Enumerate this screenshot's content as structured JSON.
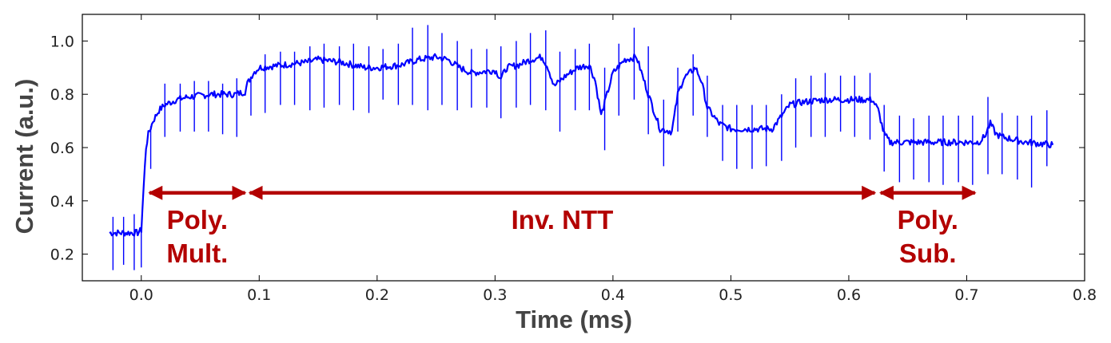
{
  "chart_data": {
    "type": "line",
    "title": "",
    "xlabel": "Time (ms)",
    "ylabel": "Current (a.u.)",
    "xlim": [
      -0.05,
      0.8
    ],
    "ylim": [
      0.1,
      1.1
    ],
    "x_ticks": [
      {
        "value": 0.0,
        "label": "0.0"
      },
      {
        "value": 0.1,
        "label": "0.1"
      },
      {
        "value": 0.2,
        "label": "0.2"
      },
      {
        "value": 0.3,
        "label": "0.3"
      },
      {
        "value": 0.4,
        "label": "0.4"
      },
      {
        "value": 0.5,
        "label": "0.5"
      },
      {
        "value": 0.6,
        "label": "0.6"
      },
      {
        "value": 0.7,
        "label": "0.7"
      },
      {
        "value": 0.8,
        "label": "0.8"
      }
    ],
    "y_ticks": [
      {
        "value": 0.2,
        "label": "0.2"
      },
      {
        "value": 0.4,
        "label": "0.4"
      },
      {
        "value": 0.6,
        "label": "0.6"
      },
      {
        "value": 0.8,
        "label": "0.8"
      },
      {
        "value": 1.0,
        "label": "1.0"
      }
    ],
    "grid": false,
    "series_color": "#0000ff",
    "annotation_color": "#b30000",
    "series": [
      {
        "x": [
          -0.027,
          -0.02,
          -0.01,
          -0.003,
          0.0,
          0.002,
          0.004,
          0.006,
          0.01,
          0.015,
          0.02,
          0.03,
          0.04,
          0.06,
          0.08,
          0.088,
          0.09,
          0.095,
          0.1,
          0.12,
          0.14,
          0.15,
          0.17,
          0.19,
          0.2,
          0.22,
          0.235,
          0.25,
          0.26,
          0.27,
          0.28,
          0.3,
          0.305,
          0.31,
          0.32,
          0.33,
          0.34,
          0.345,
          0.35,
          0.36,
          0.37,
          0.38,
          0.385,
          0.39,
          0.395,
          0.4,
          0.41,
          0.42,
          0.43,
          0.44,
          0.45,
          0.455,
          0.46,
          0.47,
          0.475,
          0.48,
          0.49,
          0.5,
          0.52,
          0.535,
          0.545,
          0.55,
          0.56,
          0.58,
          0.6,
          0.62,
          0.625,
          0.63,
          0.635,
          0.64,
          0.66,
          0.68,
          0.7,
          0.71,
          0.715,
          0.72,
          0.725,
          0.73,
          0.75,
          0.773
        ],
        "y": [
          0.28,
          0.28,
          0.28,
          0.28,
          0.29,
          0.45,
          0.6,
          0.65,
          0.7,
          0.74,
          0.76,
          0.78,
          0.79,
          0.8,
          0.8,
          0.81,
          0.84,
          0.88,
          0.9,
          0.91,
          0.92,
          0.93,
          0.92,
          0.9,
          0.9,
          0.91,
          0.93,
          0.94,
          0.93,
          0.9,
          0.88,
          0.89,
          0.86,
          0.9,
          0.91,
          0.93,
          0.94,
          0.9,
          0.83,
          0.87,
          0.9,
          0.91,
          0.85,
          0.72,
          0.8,
          0.88,
          0.93,
          0.94,
          0.8,
          0.67,
          0.66,
          0.8,
          0.86,
          0.9,
          0.85,
          0.75,
          0.69,
          0.67,
          0.67,
          0.67,
          0.73,
          0.76,
          0.77,
          0.78,
          0.78,
          0.78,
          0.74,
          0.65,
          0.62,
          0.62,
          0.62,
          0.62,
          0.62,
          0.62,
          0.64,
          0.69,
          0.65,
          0.64,
          0.62,
          0.61
        ]
      }
    ],
    "spikes": [
      {
        "x": -0.024,
        "lo": 0.14,
        "hi": 0.34
      },
      {
        "x": -0.015,
        "lo": 0.16,
        "hi": 0.34
      },
      {
        "x": -0.006,
        "lo": 0.14,
        "hi": 0.35
      },
      {
        "x": 0.0,
        "lo": 0.15,
        "hi": 0.3
      },
      {
        "x": 0.008,
        "lo": 0.52,
        "hi": 0.68
      },
      {
        "x": 0.02,
        "lo": 0.64,
        "hi": 0.84
      },
      {
        "x": 0.033,
        "lo": 0.66,
        "hi": 0.84
      },
      {
        "x": 0.045,
        "lo": 0.66,
        "hi": 0.85
      },
      {
        "x": 0.057,
        "lo": 0.66,
        "hi": 0.85
      },
      {
        "x": 0.069,
        "lo": 0.65,
        "hi": 0.84
      },
      {
        "x": 0.081,
        "lo": 0.64,
        "hi": 0.86
      },
      {
        "x": 0.093,
        "lo": 0.72,
        "hi": 0.86
      },
      {
        "x": 0.105,
        "lo": 0.73,
        "hi": 0.95
      },
      {
        "x": 0.118,
        "lo": 0.76,
        "hi": 0.96
      },
      {
        "x": 0.13,
        "lo": 0.76,
        "hi": 0.96
      },
      {
        "x": 0.143,
        "lo": 0.74,
        "hi": 0.98
      },
      {
        "x": 0.155,
        "lo": 0.75,
        "hi": 0.99
      },
      {
        "x": 0.168,
        "lo": 0.76,
        "hi": 0.98
      },
      {
        "x": 0.18,
        "lo": 0.74,
        "hi": 0.99
      },
      {
        "x": 0.193,
        "lo": 0.73,
        "hi": 0.98
      },
      {
        "x": 0.205,
        "lo": 0.78,
        "hi": 0.97
      },
      {
        "x": 0.218,
        "lo": 0.76,
        "hi": 0.99
      },
      {
        "x": 0.23,
        "lo": 0.76,
        "hi": 1.05
      },
      {
        "x": 0.243,
        "lo": 0.74,
        "hi": 1.06
      },
      {
        "x": 0.255,
        "lo": 0.76,
        "hi": 1.03
      },
      {
        "x": 0.268,
        "lo": 0.74,
        "hi": 1.0
      },
      {
        "x": 0.28,
        "lo": 0.75,
        "hi": 0.97
      },
      {
        "x": 0.293,
        "lo": 0.75,
        "hi": 0.97
      },
      {
        "x": 0.305,
        "lo": 0.71,
        "hi": 0.98
      },
      {
        "x": 0.318,
        "lo": 0.75,
        "hi": 1.0
      },
      {
        "x": 0.33,
        "lo": 0.76,
        "hi": 1.03
      },
      {
        "x": 0.343,
        "lo": 0.74,
        "hi": 1.04
      },
      {
        "x": 0.355,
        "lo": 0.66,
        "hi": 0.96
      },
      {
        "x": 0.368,
        "lo": 0.74,
        "hi": 0.97
      },
      {
        "x": 0.38,
        "lo": 0.74,
        "hi": 0.99
      },
      {
        "x": 0.393,
        "lo": 0.59,
        "hi": 0.9
      },
      {
        "x": 0.405,
        "lo": 0.72,
        "hi": 0.99
      },
      {
        "x": 0.418,
        "lo": 0.78,
        "hi": 1.05
      },
      {
        "x": 0.43,
        "lo": 0.65,
        "hi": 0.98
      },
      {
        "x": 0.443,
        "lo": 0.53,
        "hi": 0.78
      },
      {
        "x": 0.455,
        "lo": 0.66,
        "hi": 0.9
      },
      {
        "x": 0.468,
        "lo": 0.72,
        "hi": 0.95
      },
      {
        "x": 0.48,
        "lo": 0.64,
        "hi": 0.87
      },
      {
        "x": 0.493,
        "lo": 0.55,
        "hi": 0.76
      },
      {
        "x": 0.505,
        "lo": 0.52,
        "hi": 0.76
      },
      {
        "x": 0.518,
        "lo": 0.52,
        "hi": 0.76
      },
      {
        "x": 0.53,
        "lo": 0.53,
        "hi": 0.76
      },
      {
        "x": 0.543,
        "lo": 0.55,
        "hi": 0.8
      },
      {
        "x": 0.555,
        "lo": 0.6,
        "hi": 0.86
      },
      {
        "x": 0.568,
        "lo": 0.64,
        "hi": 0.87
      },
      {
        "x": 0.58,
        "lo": 0.64,
        "hi": 0.88
      },
      {
        "x": 0.593,
        "lo": 0.66,
        "hi": 0.87
      },
      {
        "x": 0.605,
        "lo": 0.64,
        "hi": 0.87
      },
      {
        "x": 0.618,
        "lo": 0.63,
        "hi": 0.88
      },
      {
        "x": 0.63,
        "lo": 0.51,
        "hi": 0.76
      },
      {
        "x": 0.643,
        "lo": 0.47,
        "hi": 0.72
      },
      {
        "x": 0.655,
        "lo": 0.48,
        "hi": 0.71
      },
      {
        "x": 0.668,
        "lo": 0.47,
        "hi": 0.72
      },
      {
        "x": 0.68,
        "lo": 0.46,
        "hi": 0.72
      },
      {
        "x": 0.693,
        "lo": 0.47,
        "hi": 0.72
      },
      {
        "x": 0.705,
        "lo": 0.46,
        "hi": 0.72
      },
      {
        "x": 0.718,
        "lo": 0.5,
        "hi": 0.79
      },
      {
        "x": 0.73,
        "lo": 0.5,
        "hi": 0.73
      },
      {
        "x": 0.743,
        "lo": 0.48,
        "hi": 0.72
      },
      {
        "x": 0.755,
        "lo": 0.45,
        "hi": 0.72
      },
      {
        "x": 0.768,
        "lo": 0.53,
        "hi": 0.74
      }
    ],
    "annotations": [
      {
        "lines": [
          "Poly.",
          "Mult."
        ],
        "x_start": 0.007,
        "x_end": 0.088,
        "y": 0.43
      },
      {
        "lines": [
          "Inv. NTT"
        ],
        "x_start": 0.092,
        "x_end": 0.622,
        "y": 0.43
      },
      {
        "lines": [
          "Poly.",
          "Sub."
        ],
        "x_start": 0.627,
        "x_end": 0.707,
        "y": 0.43
      }
    ]
  }
}
